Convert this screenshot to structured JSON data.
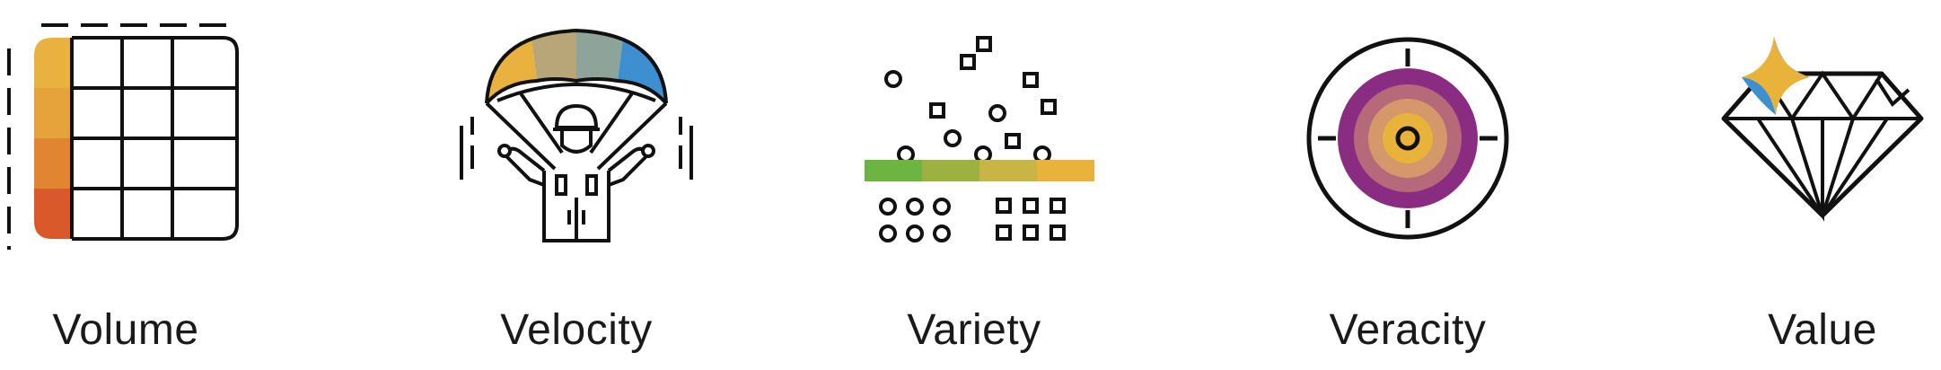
{
  "items": [
    {
      "label": "Volume",
      "icon": "grid-table-icon"
    },
    {
      "label": "Velocity",
      "icon": "parachute-icon"
    },
    {
      "label": "Variety",
      "icon": "scattered-shapes-icon"
    },
    {
      "label": "Veracity",
      "icon": "target-icon"
    },
    {
      "label": "Value",
      "icon": "diamond-icon"
    }
  ],
  "colors": {
    "stroke": "#111111",
    "orange_light": "#e9b13e",
    "orange": "#e29239",
    "orange_dark": "#d9592a",
    "taupe": "#b8a578",
    "sage": "#8ea39a",
    "blue": "#3e8fd0",
    "green": "#6db541",
    "olive": "#9db140",
    "mustard": "#c9b446",
    "purple": "#8a2d82",
    "mauve": "#b66a79",
    "peach": "#d4986a",
    "gold": "#e9b23b"
  }
}
